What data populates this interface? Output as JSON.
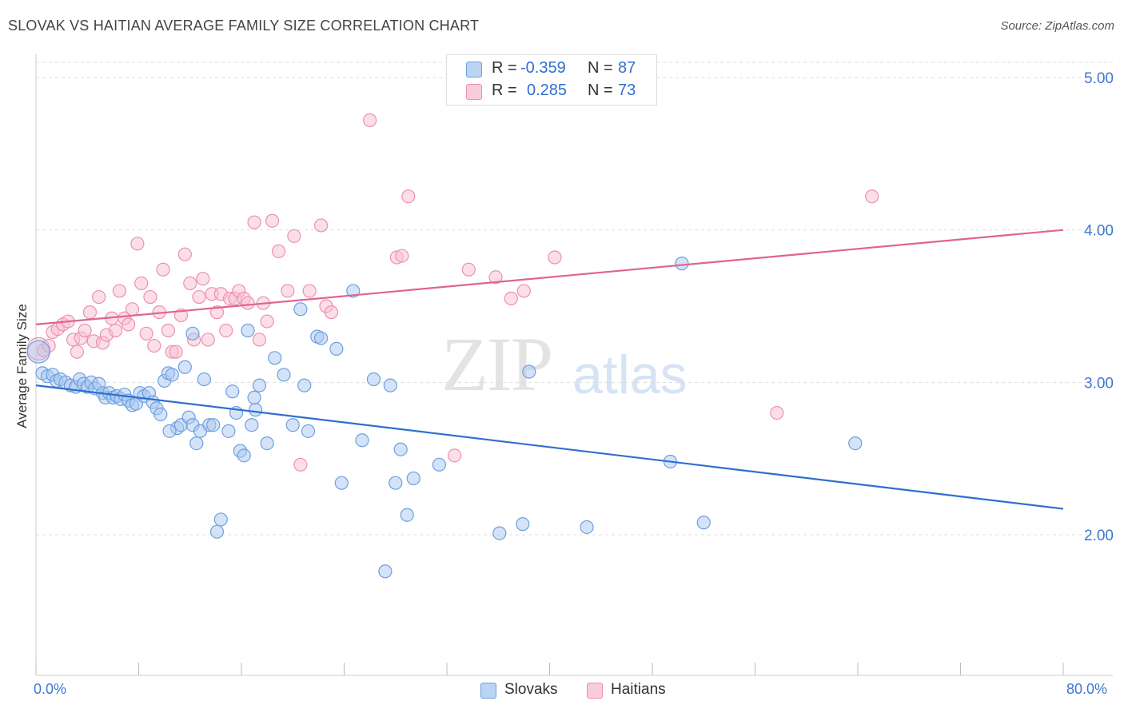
{
  "header": {
    "title": "SLOVAK VS HAITIAN AVERAGE FAMILY SIZE CORRELATION CHART",
    "source": "Source: ZipAtlas.com"
  },
  "watermark": {
    "zip": "ZIP",
    "atlas": "atlas"
  },
  "legend": {
    "slovak": {
      "r_label": "R =",
      "r_value": "-0.359",
      "n_label": "N =",
      "n_value": "87"
    },
    "haitian": {
      "r_label": "R =",
      "r_value": "0.285",
      "n_label": "N =",
      "n_value": "73"
    }
  },
  "bottom_legend": {
    "slovaks": "Slovaks",
    "haitians": "Haitians"
  },
  "x_axis": {
    "min_label": "0.0%",
    "max_label": "80.0%"
  },
  "colors": {
    "slovak_fill": "#a9c8f0",
    "slovak_stroke": "#6d9fe0",
    "slovak_line": "#2f6fce",
    "haitian_fill": "#f7bfd1",
    "haitian_stroke": "#ee8fb0",
    "haitian_line": "#e0648f",
    "tick_text": "#3d77d1",
    "grid": "#dddddd"
  },
  "chart_data": {
    "type": "scatter",
    "title": "SLOVAK VS HAITIAN AVERAGE FAMILY SIZE CORRELATION CHART",
    "xlabel": "",
    "ylabel": "Average Family Size",
    "xlim": [
      0,
      80
    ],
    "ylim": [
      1.0,
      5.1
    ],
    "y_ticks": [
      2.0,
      3.0,
      4.0,
      5.0
    ],
    "y_tick_labels": [
      "2.00",
      "3.00",
      "4.00",
      "5.00"
    ],
    "x_tick_values": [
      0,
      8,
      16,
      24,
      32,
      40,
      48,
      56,
      64,
      72,
      80
    ],
    "series": [
      {
        "name": "Slovaks",
        "r": -0.359,
        "n": 87,
        "trend": {
          "x": [
            0,
            80
          ],
          "y": [
            2.98,
            2.17
          ]
        },
        "points": [
          [
            0.2,
            3.2
          ],
          [
            0.5,
            3.06
          ],
          [
            0.9,
            3.04
          ],
          [
            1.3,
            3.05
          ],
          [
            1.6,
            3.01
          ],
          [
            1.9,
            3.02
          ],
          [
            2.3,
            3.0
          ],
          [
            2.7,
            2.98
          ],
          [
            3.1,
            2.97
          ],
          [
            3.4,
            3.02
          ],
          [
            3.7,
            2.99
          ],
          [
            4.0,
            2.97
          ],
          [
            4.3,
            3.0
          ],
          [
            4.6,
            2.96
          ],
          [
            4.9,
            2.99
          ],
          [
            5.2,
            2.93
          ],
          [
            5.4,
            2.9
          ],
          [
            5.7,
            2.93
          ],
          [
            6.0,
            2.9
          ],
          [
            6.3,
            2.91
          ],
          [
            6.6,
            2.89
          ],
          [
            6.9,
            2.92
          ],
          [
            7.2,
            2.88
          ],
          [
            7.5,
            2.85
          ],
          [
            7.8,
            2.86
          ],
          [
            8.1,
            2.93
          ],
          [
            8.4,
            2.91
          ],
          [
            8.8,
            2.93
          ],
          [
            9.1,
            2.87
          ],
          [
            9.4,
            2.83
          ],
          [
            9.7,
            2.79
          ],
          [
            10.0,
            3.01
          ],
          [
            10.3,
            3.06
          ],
          [
            10.6,
            3.05
          ],
          [
            11.0,
            2.7
          ],
          [
            11.3,
            2.72
          ],
          [
            11.6,
            3.1
          ],
          [
            11.9,
            2.77
          ],
          [
            12.2,
            2.72
          ],
          [
            12.5,
            2.6
          ],
          [
            12.8,
            2.68
          ],
          [
            13.1,
            3.02
          ],
          [
            13.5,
            2.72
          ],
          [
            13.8,
            2.72
          ],
          [
            14.1,
            2.02
          ],
          [
            14.4,
            2.1
          ],
          [
            15.0,
            2.68
          ],
          [
            15.3,
            2.94
          ],
          [
            15.6,
            2.8
          ],
          [
            15.9,
            2.55
          ],
          [
            16.2,
            2.52
          ],
          [
            16.5,
            3.34
          ],
          [
            16.8,
            2.72
          ],
          [
            17.1,
            2.82
          ],
          [
            17.4,
            2.98
          ],
          [
            18.0,
            2.6
          ],
          [
            18.6,
            3.16
          ],
          [
            19.3,
            3.05
          ],
          [
            20.0,
            2.72
          ],
          [
            20.6,
            3.48
          ],
          [
            20.9,
            2.98
          ],
          [
            21.2,
            2.68
          ],
          [
            21.9,
            3.3
          ],
          [
            22.2,
            3.29
          ],
          [
            23.4,
            3.22
          ],
          [
            23.8,
            2.34
          ],
          [
            24.7,
            3.6
          ],
          [
            25.4,
            2.62
          ],
          [
            26.3,
            3.02
          ],
          [
            27.2,
            1.76
          ],
          [
            27.6,
            2.98
          ],
          [
            28.0,
            2.34
          ],
          [
            28.4,
            2.56
          ],
          [
            28.9,
            2.13
          ],
          [
            29.4,
            2.37
          ],
          [
            31.4,
            2.46
          ],
          [
            36.1,
            2.01
          ],
          [
            37.9,
            2.07
          ],
          [
            38.4,
            3.07
          ],
          [
            42.9,
            2.05
          ],
          [
            49.4,
            2.48
          ],
          [
            50.3,
            3.78
          ],
          [
            52.0,
            2.08
          ],
          [
            63.8,
            2.6
          ],
          [
            10.4,
            2.68
          ],
          [
            12.2,
            3.32
          ],
          [
            17.0,
            2.9
          ]
        ]
      },
      {
        "name": "Haitians",
        "r": 0.285,
        "n": 73,
        "trend": {
          "x": [
            0,
            80
          ],
          "y": [
            3.38,
            4.0
          ]
        },
        "points": [
          [
            0.2,
            3.22
          ],
          [
            0.6,
            3.21
          ],
          [
            1.0,
            3.24
          ],
          [
            1.3,
            3.33
          ],
          [
            1.7,
            3.35
          ],
          [
            2.1,
            3.38
          ],
          [
            2.5,
            3.4
          ],
          [
            2.9,
            3.28
          ],
          [
            3.2,
            3.2
          ],
          [
            3.5,
            3.29
          ],
          [
            3.8,
            3.34
          ],
          [
            4.2,
            3.46
          ],
          [
            4.5,
            3.27
          ],
          [
            4.9,
            3.56
          ],
          [
            5.2,
            3.26
          ],
          [
            5.5,
            3.31
          ],
          [
            5.9,
            3.42
          ],
          [
            6.2,
            3.34
          ],
          [
            6.5,
            3.6
          ],
          [
            6.9,
            3.42
          ],
          [
            7.2,
            3.38
          ],
          [
            7.5,
            3.48
          ],
          [
            7.9,
            3.91
          ],
          [
            8.2,
            3.65
          ],
          [
            8.6,
            3.32
          ],
          [
            8.9,
            3.56
          ],
          [
            9.2,
            3.24
          ],
          [
            9.6,
            3.46
          ],
          [
            9.9,
            3.74
          ],
          [
            10.3,
            3.34
          ],
          [
            10.6,
            3.2
          ],
          [
            10.9,
            3.2
          ],
          [
            11.3,
            3.44
          ],
          [
            11.6,
            3.84
          ],
          [
            12.0,
            3.65
          ],
          [
            12.3,
            3.28
          ],
          [
            12.7,
            3.56
          ],
          [
            13.0,
            3.68
          ],
          [
            13.4,
            3.28
          ],
          [
            13.7,
            3.58
          ],
          [
            14.1,
            3.46
          ],
          [
            14.4,
            3.58
          ],
          [
            14.8,
            3.34
          ],
          [
            15.1,
            3.55
          ],
          [
            15.5,
            3.55
          ],
          [
            15.8,
            3.6
          ],
          [
            16.2,
            3.55
          ],
          [
            16.5,
            3.52
          ],
          [
            17.0,
            4.05
          ],
          [
            17.4,
            3.28
          ],
          [
            17.7,
            3.52
          ],
          [
            18.0,
            3.4
          ],
          [
            18.4,
            4.06
          ],
          [
            18.9,
            3.86
          ],
          [
            19.6,
            3.6
          ],
          [
            20.1,
            3.96
          ],
          [
            20.6,
            2.46
          ],
          [
            21.3,
            3.6
          ],
          [
            22.2,
            4.03
          ],
          [
            22.6,
            3.5
          ],
          [
            23.0,
            3.46
          ],
          [
            26.0,
            4.72
          ],
          [
            28.1,
            3.82
          ],
          [
            28.5,
            3.83
          ],
          [
            29.0,
            4.22
          ],
          [
            32.6,
            2.52
          ],
          [
            33.7,
            3.74
          ],
          [
            35.8,
            3.69
          ],
          [
            37.0,
            3.55
          ],
          [
            38.0,
            3.6
          ],
          [
            40.4,
            3.82
          ],
          [
            57.7,
            2.8
          ],
          [
            65.1,
            4.22
          ]
        ]
      }
    ]
  }
}
